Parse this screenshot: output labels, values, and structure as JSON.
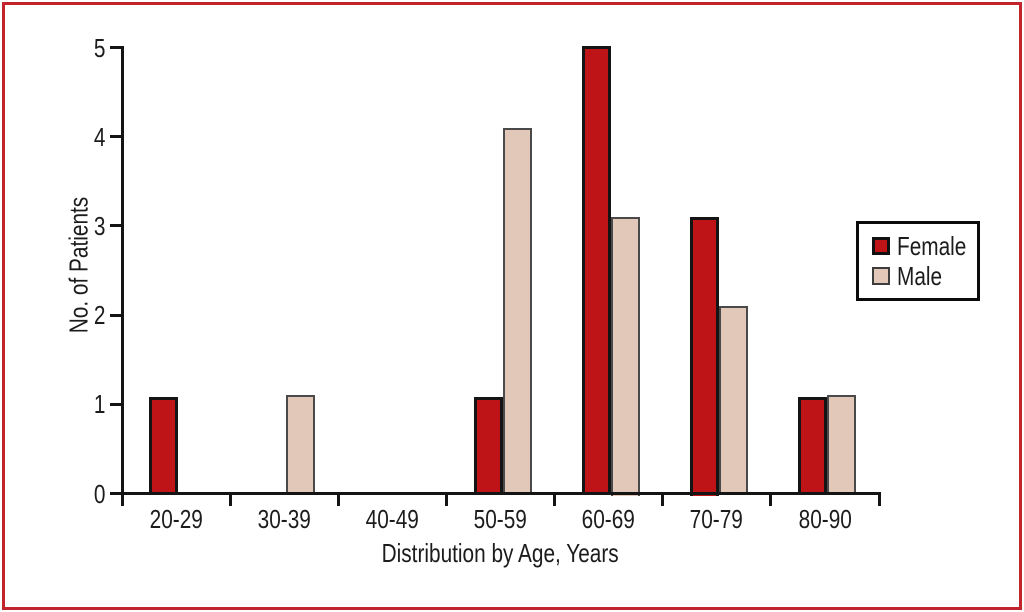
{
  "figure": {
    "frame_color": "#c2242b",
    "background": "#ffffff",
    "axis_color": "#141414",
    "text_color": "#1c1c1c"
  },
  "chart_data": {
    "type": "bar",
    "title": "",
    "xlabel": "Distribution by Age, Years",
    "ylabel": "No. of Patients",
    "categories": [
      "20-29",
      "30-39",
      "40-49",
      "50-59",
      "60-69",
      "70-79",
      "80-90"
    ],
    "series": [
      {
        "name": "Female",
        "color": "#be1317",
        "border_color": "#141414",
        "values": [
          1.08,
          0,
          0,
          1.08,
          5.02,
          3.1,
          1.08
        ]
      },
      {
        "name": "Male",
        "color": "#e2c8b8",
        "border_color": "#4a4a4a",
        "values": [
          0,
          1.1,
          0,
          4.1,
          3.1,
          2.1,
          1.1
        ]
      }
    ],
    "ylim": [
      0,
      5
    ],
    "yticks": [
      0,
      1,
      2,
      3,
      4,
      5
    ],
    "grid": false,
    "legend_position": "right",
    "legend_items": [
      "Female",
      "Male"
    ]
  }
}
